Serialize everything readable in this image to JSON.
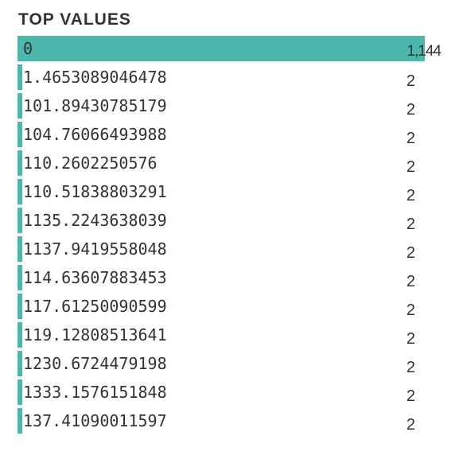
{
  "title": "TOP VALUES",
  "colors": {
    "bar": "#4cb8ab",
    "text": "#333333"
  },
  "chart_data": {
    "type": "bar",
    "orientation": "horizontal",
    "title": "TOP VALUES",
    "categories": [
      "0",
      "1.4653089046478",
      "101.89430785179",
      "104.76066493988",
      "110.2602250576",
      "110.51838803291",
      "1135.2243638039",
      "1137.9419558048",
      "114.63607883453",
      "117.61250090599",
      "119.12808513641",
      "1230.6724479198",
      "1333.1576151848",
      "137.41090011597"
    ],
    "values": [
      1144,
      2,
      2,
      2,
      2,
      2,
      2,
      2,
      2,
      2,
      2,
      2,
      2,
      2
    ],
    "value_labels": [
      "1,144",
      "2",
      "2",
      "2",
      "2",
      "2",
      "2",
      "2",
      "2",
      "2",
      "2",
      "2",
      "2",
      "2"
    ]
  }
}
